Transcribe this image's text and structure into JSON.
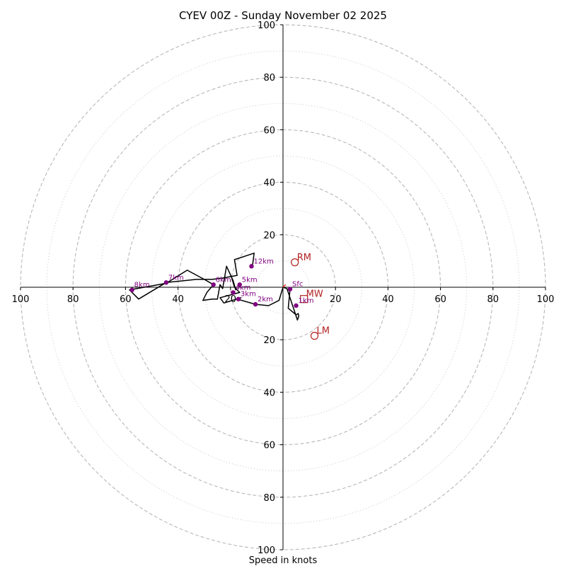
{
  "chart_data": {
    "type": "hodograph",
    "title": "CYEV 00Z - Sunday November 02 2025",
    "xlabel": "Speed in knots",
    "xlim": [
      -100,
      100
    ],
    "ylim": [
      -100,
      100
    ],
    "rings_major": [
      20,
      40,
      60,
      80,
      100
    ],
    "rings_minor": [
      10,
      30,
      50,
      70,
      90
    ],
    "x_ticks": [
      {
        "value": -100,
        "label": "100"
      },
      {
        "value": -80,
        "label": "80"
      },
      {
        "value": -60,
        "label": "60"
      },
      {
        "value": -40,
        "label": "40"
      },
      {
        "value": -20,
        "label": "20"
      },
      {
        "value": 20,
        "label": "20"
      },
      {
        "value": 40,
        "label": "40"
      },
      {
        "value": 60,
        "label": "60"
      },
      {
        "value": 80,
        "label": "80"
      },
      {
        "value": 100,
        "label": "100"
      }
    ],
    "y_ticks": [
      {
        "value": 100,
        "label": "100"
      },
      {
        "value": 80,
        "label": "80"
      },
      {
        "value": 60,
        "label": "60"
      },
      {
        "value": 40,
        "label": "40"
      },
      {
        "value": 20,
        "label": "20"
      },
      {
        "value": -20,
        "label": "20"
      },
      {
        "value": -40,
        "label": "40"
      },
      {
        "value": -60,
        "label": "60"
      },
      {
        "value": -80,
        "label": "80"
      },
      {
        "value": -100,
        "label": "100"
      }
    ],
    "hodograph_trace": [
      [
        2.7,
        -0.7
      ],
      [
        2.0,
        -8.0
      ],
      [
        5.0,
        -10.5
      ],
      [
        5.8,
        -10.0
      ],
      [
        6.0,
        -11.0
      ],
      [
        5.5,
        -12.5
      ],
      [
        1.5,
        -0.5
      ],
      [
        0.0,
        0.0
      ],
      [
        -1.5,
        -5.0
      ],
      [
        -5.5,
        -7.0
      ],
      [
        -10.5,
        -6.5
      ],
      [
        -17.5,
        -4.5
      ],
      [
        -16.0,
        -4.0
      ],
      [
        -22.5,
        -6.0
      ],
      [
        -24.0,
        -4.0
      ],
      [
        -16.5,
        -2.0
      ],
      [
        -18.5,
        0.0
      ],
      [
        -19.5,
        3.5
      ],
      [
        -18.0,
        -1.0
      ],
      [
        -19.0,
        2.5
      ],
      [
        -21.5,
        8.0
      ],
      [
        -23.0,
        -0.5
      ],
      [
        -24.0,
        1.0
      ],
      [
        -25.0,
        -4.5
      ],
      [
        -27.0,
        -4.5
      ],
      [
        -30.5,
        -5.0
      ],
      [
        -29.0,
        -2.0
      ],
      [
        -26.5,
        1.0
      ],
      [
        -30.0,
        3.0
      ],
      [
        -36.5,
        6.5
      ],
      [
        -44.5,
        1.5
      ],
      [
        -58.5,
        -1.0
      ],
      [
        -55.0,
        -4.5
      ],
      [
        -44.5,
        1.8
      ],
      [
        -33.0,
        3.0
      ],
      [
        -27.0,
        3.0
      ],
      [
        -23.0,
        3.5
      ],
      [
        -17.5,
        4.5
      ],
      [
        -18.5,
        10.5
      ],
      [
        -11.0,
        13.0
      ],
      [
        -11.5,
        9.0
      ],
      [
        -12.0,
        8.0
      ]
    ],
    "levels": [
      {
        "label": "Sfc",
        "u": 2.7,
        "v": -0.7
      },
      {
        "label": "1km",
        "u": 5.0,
        "v": -7.0
      },
      {
        "label": "2km",
        "u": -10.5,
        "v": -6.5
      },
      {
        "label": "3km",
        "u": -17.0,
        "v": -4.5
      },
      {
        "label": "4km",
        "u": -19.0,
        "v": -2.0
      },
      {
        "label": "5km",
        "u": -16.5,
        "v": 1.0
      },
      {
        "label": "6km",
        "u": -26.5,
        "v": 1.0
      },
      {
        "label": "7km",
        "u": -44.5,
        "v": 1.8
      },
      {
        "label": "8km",
        "u": -57.5,
        "v": -1.0
      },
      {
        "label": "12km",
        "u": -12.0,
        "v": 8.0
      }
    ],
    "storm_motions": [
      {
        "label": "RM",
        "u": 4.5,
        "v": 9.5,
        "marker": "circle"
      },
      {
        "label": "LM",
        "u": 12.0,
        "v": -18.5,
        "marker": "circle"
      },
      {
        "label": "MW",
        "u": 8.0,
        "v": -4.5,
        "marker": "square"
      }
    ],
    "mean_wind_vector": {
      "u": 1.0,
      "v": 1.0
    }
  }
}
